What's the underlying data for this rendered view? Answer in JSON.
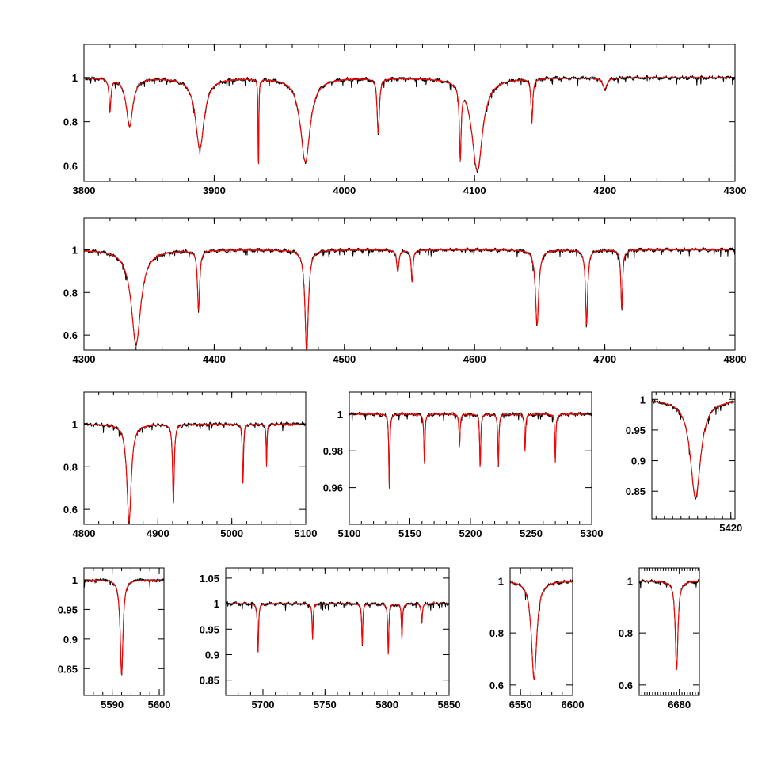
{
  "figure": {
    "title": "",
    "colors": {
      "observed": "#000000",
      "model": "#ff0000",
      "frame": "#000000"
    }
  },
  "chart_data": [
    {
      "type": "line",
      "id": "p1",
      "xlim": [
        3800,
        4300
      ],
      "ylim": [
        0.53,
        1.15
      ],
      "xticks": [
        "3800",
        "3900",
        "4000",
        "4100",
        "4200",
        "4300"
      ],
      "xtick_values": [
        3800,
        3900,
        4000,
        4100,
        4200,
        4300
      ],
      "yticks": [
        "0.6",
        "0.8",
        "1"
      ],
      "ytick_values": [
        0.6,
        0.8,
        1.0
      ],
      "grid": false,
      "series": [
        {
          "role": "observed"
        },
        {
          "role": "model"
        }
      ],
      "features": [
        {
          "x": 3835,
          "depth": 0.22,
          "width": 3
        },
        {
          "x": 3889,
          "depth": 0.32,
          "width": 4
        },
        {
          "x": 3934,
          "depth": 0.45,
          "width": 0.3
        },
        {
          "x": 3970,
          "depth": 0.38,
          "width": 4.5
        },
        {
          "x": 4026,
          "depth": 0.25,
          "width": 1
        },
        {
          "x": 4089,
          "depth": 0.32,
          "width": 0.8
        },
        {
          "x": 4102,
          "depth": 0.42,
          "width": 5
        },
        {
          "x": 4144,
          "depth": 0.2,
          "width": 0.8
        },
        {
          "x": 4200,
          "depth": 0.05,
          "width": 2
        },
        {
          "x": 3820,
          "depth": 0.15,
          "width": 0.8
        }
      ]
    },
    {
      "type": "line",
      "id": "p2",
      "xlim": [
        4300,
        4800
      ],
      "ylim": [
        0.53,
        1.15
      ],
      "xticks": [
        "4300",
        "4400",
        "4500",
        "4600",
        "4700",
        "4800"
      ],
      "xtick_values": [
        4300,
        4400,
        4500,
        4600,
        4700,
        4800
      ],
      "yticks": [
        "0.6",
        "0.8",
        "1"
      ],
      "ytick_values": [
        0.6,
        0.8,
        1.0
      ],
      "grid": false,
      "series": [
        {
          "role": "observed"
        },
        {
          "role": "model"
        }
      ],
      "features": [
        {
          "x": 4340,
          "depth": 0.44,
          "width": 4.5
        },
        {
          "x": 4388,
          "depth": 0.28,
          "width": 1
        },
        {
          "x": 4471,
          "depth": 0.48,
          "width": 1.5
        },
        {
          "x": 4541,
          "depth": 0.1,
          "width": 1
        },
        {
          "x": 4552,
          "depth": 0.15,
          "width": 0.8
        },
        {
          "x": 4648,
          "depth": 0.35,
          "width": 1.5
        },
        {
          "x": 4686,
          "depth": 0.35,
          "width": 1
        },
        {
          "x": 4713,
          "depth": 0.28,
          "width": 0.8
        }
      ]
    },
    {
      "type": "line",
      "id": "p3",
      "xlim": [
        4800,
        5100
      ],
      "ylim": [
        0.53,
        1.15
      ],
      "xticks": [
        "4800",
        "4900",
        "5000",
        "5100"
      ],
      "xtick_values": [
        4800,
        4900,
        5000,
        5100
      ],
      "yticks": [
        "0.6",
        "0.8",
        "1"
      ],
      "ytick_values": [
        0.6,
        0.8,
        1.0
      ],
      "grid": false,
      "series": [
        {
          "role": "observed"
        },
        {
          "role": "model"
        }
      ],
      "features": [
        {
          "x": 4861,
          "depth": 0.46,
          "width": 3.5
        },
        {
          "x": 4921,
          "depth": 0.38,
          "width": 1.3
        },
        {
          "x": 5015,
          "depth": 0.3,
          "width": 0.8
        },
        {
          "x": 5047,
          "depth": 0.2,
          "width": 0.6
        }
      ]
    },
    {
      "type": "line",
      "id": "p4",
      "xlim": [
        5100,
        5300
      ],
      "ylim": [
        0.94,
        1.012
      ],
      "xticks": [
        "5100",
        "5150",
        "5200",
        "5250",
        "5300"
      ],
      "xtick_values": [
        5100,
        5150,
        5200,
        5250,
        5300
      ],
      "yticks": [
        "0.96",
        "0.98",
        "1"
      ],
      "ytick_values": [
        0.96,
        0.98,
        1.0
      ],
      "grid": false,
      "series": [
        {
          "role": "observed"
        },
        {
          "role": "model"
        }
      ],
      "features": [
        {
          "x": 5133,
          "depth": 0.04,
          "width": 0.5
        },
        {
          "x": 5162,
          "depth": 0.028,
          "width": 0.5
        },
        {
          "x": 5191,
          "depth": 0.018,
          "width": 0.5
        },
        {
          "x": 5208,
          "depth": 0.03,
          "width": 0.5
        },
        {
          "x": 5223,
          "depth": 0.028,
          "width": 0.5
        },
        {
          "x": 5245,
          "depth": 0.02,
          "width": 0.5
        },
        {
          "x": 5270,
          "depth": 0.026,
          "width": 0.5
        }
      ]
    },
    {
      "type": "line",
      "id": "p5",
      "xlim": [
        5401,
        5421
      ],
      "ylim": [
        0.805,
        1.012
      ],
      "xticks": [
        "5420"
      ],
      "xtick_values": [
        5420
      ],
      "yticks": [
        "0.85",
        "0.9",
        "0.95",
        "1"
      ],
      "ytick_values": [
        0.85,
        0.9,
        0.95,
        1.0
      ],
      "grid": false,
      "series": [
        {
          "role": "observed"
        },
        {
          "role": "model"
        }
      ],
      "features": [
        {
          "x": 5411.5,
          "depth": 0.16,
          "width": 1.5
        }
      ]
    },
    {
      "type": "line",
      "id": "p6",
      "xlim": [
        5584,
        5601
      ],
      "ylim": [
        0.805,
        1.02
      ],
      "xticks": [
        "5590",
        "5600"
      ],
      "xtick_values": [
        5590,
        5600
      ],
      "yticks": [
        "0.85",
        "0.9",
        "0.95",
        "1"
      ],
      "ytick_values": [
        0.85,
        0.9,
        0.95,
        1.0
      ],
      "grid": false,
      "series": [
        {
          "role": "observed"
        },
        {
          "role": "model"
        }
      ],
      "features": [
        {
          "x": 5592,
          "depth": 0.16,
          "width": 0.35
        }
      ]
    },
    {
      "type": "line",
      "id": "p7",
      "xlim": [
        5670,
        5850
      ],
      "ylim": [
        0.82,
        1.07
      ],
      "xticks": [
        "5700",
        "5750",
        "5800",
        "5850"
      ],
      "xtick_values": [
        5700,
        5750,
        5800,
        5850
      ],
      "yticks": [
        "0.85",
        "0.9",
        "0.95",
        "1",
        "1.05"
      ],
      "ytick_values": [
        0.85,
        0.9,
        0.95,
        1.0,
        1.05
      ],
      "grid": false,
      "series": [
        {
          "role": "observed"
        },
        {
          "role": "model"
        }
      ],
      "features": [
        {
          "x": 5696,
          "depth": 0.1,
          "width": 0.5
        },
        {
          "x": 5740,
          "depth": 0.07,
          "width": 0.5
        },
        {
          "x": 5780,
          "depth": 0.08,
          "width": 0.5
        },
        {
          "x": 5801,
          "depth": 0.1,
          "width": 0.5
        },
        {
          "x": 5812,
          "depth": 0.07,
          "width": 0.5
        },
        {
          "x": 5828,
          "depth": 0.04,
          "width": 0.5
        }
      ]
    },
    {
      "type": "line",
      "id": "p8",
      "xlim": [
        6540,
        6600
      ],
      "ylim": [
        0.56,
        1.05
      ],
      "xticks": [
        "6550",
        "6600"
      ],
      "xtick_values": [
        6550,
        6600
      ],
      "yticks": [
        "0.6",
        "0.8",
        "1"
      ],
      "ytick_values": [
        0.6,
        0.8,
        1.0
      ],
      "grid": false,
      "series": [
        {
          "role": "observed"
        },
        {
          "role": "model"
        }
      ],
      "features": [
        {
          "x": 6563,
          "depth": 0.38,
          "width": 3
        }
      ]
    },
    {
      "type": "line",
      "id": "p9",
      "xlim": [
        6650,
        6695
      ],
      "ylim": [
        0.56,
        1.05
      ],
      "xticks": [
        "6680"
      ],
      "xtick_values": [
        6680
      ],
      "yticks": [
        "0.6",
        "0.8",
        "1"
      ],
      "ytick_values": [
        0.6,
        0.8,
        1.0
      ],
      "grid": false,
      "series": [
        {
          "role": "observed"
        },
        {
          "role": "model"
        }
      ],
      "features": [
        {
          "x": 6678,
          "depth": 0.34,
          "width": 1.2
        }
      ]
    }
  ]
}
